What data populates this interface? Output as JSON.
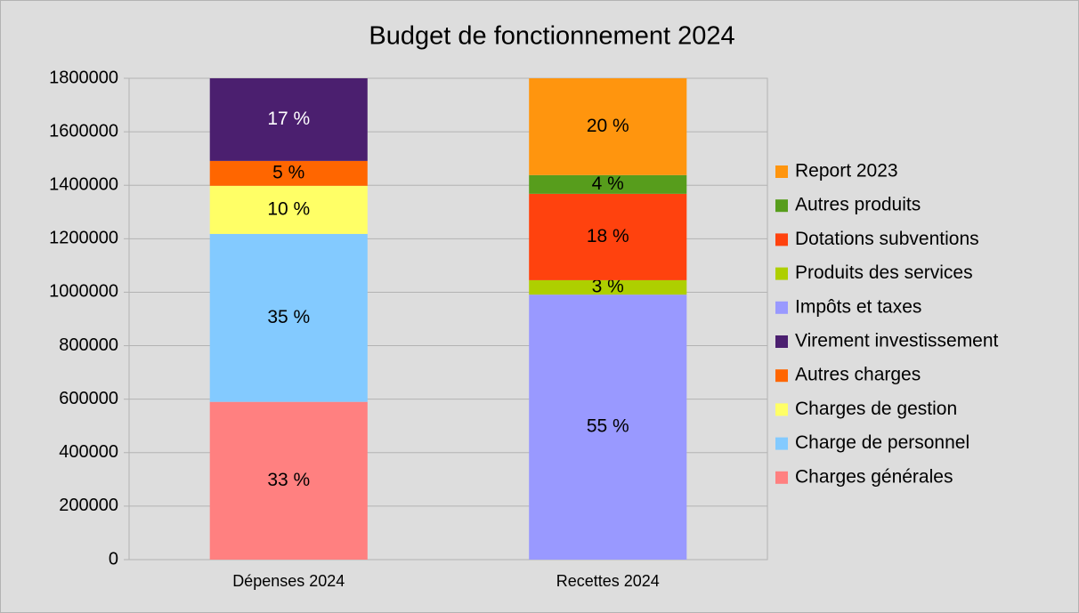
{
  "chart_data": {
    "type": "stacked_bar",
    "title": "Budget de fonctionnement 2024",
    "categories": [
      "Dépenses 2024",
      "Recettes 2024"
    ],
    "ylim": [
      0,
      1800000
    ],
    "yticks": [
      0,
      200000,
      400000,
      600000,
      800000,
      1000000,
      1200000,
      1400000,
      1600000,
      1800000
    ],
    "grid": true,
    "legend": "right",
    "series": [
      {
        "name": "Charges générales",
        "color": "#ff8080",
        "values": [
          590000,
          null
        ],
        "value_labels": [
          "33 %",
          null
        ]
      },
      {
        "name": "Charge de personnel",
        "color": "#83caff",
        "values": [
          628000,
          null
        ],
        "value_labels": [
          "35 %",
          null
        ]
      },
      {
        "name": "Charges de gestion",
        "color": "#ffff66",
        "values": [
          180000,
          null
        ],
        "value_labels": [
          "10 %",
          null
        ]
      },
      {
        "name": "Autres charges",
        "color": "#ff6600",
        "values": [
          93000,
          null
        ],
        "value_labels": [
          "5 %",
          null
        ]
      },
      {
        "name": "Virement investissement",
        "color": "#4b1f6f",
        "values": [
          309000,
          null
        ],
        "value_labels": [
          "17 %",
          null
        ]
      },
      {
        "name": "Impôts et taxes",
        "color": "#9999ff",
        "values": [
          null,
          991000
        ],
        "value_labels": [
          null,
          "55 %"
        ]
      },
      {
        "name": "Produits des services",
        "color": "#aecf00",
        "values": [
          null,
          54000
        ],
        "value_labels": [
          null,
          "3 %"
        ]
      },
      {
        "name": "Dotations subventions",
        "color": "#ff420e",
        "values": [
          null,
          323000
        ],
        "value_labels": [
          null,
          "18 %"
        ]
      },
      {
        "name": "Autres produits",
        "color": "#579d1c",
        "values": [
          null,
          70000
        ],
        "value_labels": [
          null,
          "4 %"
        ]
      },
      {
        "name": "Report 2023",
        "color": "#ff950e",
        "values": [
          null,
          362000
        ],
        "value_labels": [
          null,
          "20 %"
        ]
      }
    ]
  }
}
